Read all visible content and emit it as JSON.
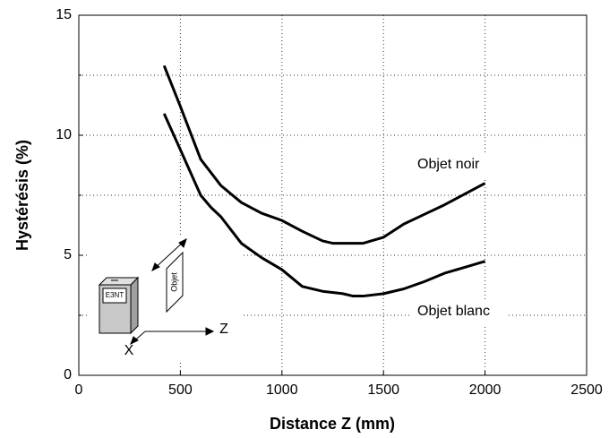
{
  "chart_data": {
    "type": "line",
    "xlabel": "Distance Z (mm)",
    "ylabel": "Hystérésis (%)",
    "xlim": [
      0,
      2500
    ],
    "xticks": [
      0,
      500,
      1000,
      1500,
      2000,
      2500
    ],
    "ylim": [
      0,
      15
    ],
    "yticks": [
      0,
      5,
      10,
      15
    ],
    "yminor": [
      2.5,
      7.5,
      12.5
    ],
    "grid": true,
    "series": [
      {
        "name": "Objet noir",
        "color": "#000000",
        "x": [
          420,
          500,
          600,
          700,
          800,
          900,
          1000,
          1100,
          1200,
          1250,
          1400,
          1500,
          1600,
          1700,
          1800,
          2000
        ],
        "values": [
          12.9,
          11.2,
          9.0,
          7.9,
          7.2,
          6.75,
          6.45,
          6.0,
          5.6,
          5.5,
          5.5,
          5.75,
          6.3,
          6.7,
          7.1,
          8.0
        ]
      },
      {
        "name": "Objet blanc",
        "color": "#000000",
        "x": [
          420,
          500,
          600,
          650,
          700,
          800,
          900,
          1000,
          1100,
          1200,
          1300,
          1350,
          1400,
          1500,
          1600,
          1700,
          1800,
          1900,
          2000
        ],
        "values": [
          10.9,
          9.4,
          7.5,
          7.0,
          6.6,
          5.5,
          4.9,
          4.4,
          3.7,
          3.5,
          3.4,
          3.3,
          3.3,
          3.4,
          3.6,
          3.9,
          4.25,
          4.5,
          4.75
        ]
      }
    ],
    "diagram_labels": [
      "E3NT",
      "Objet",
      "Z",
      "X"
    ]
  }
}
